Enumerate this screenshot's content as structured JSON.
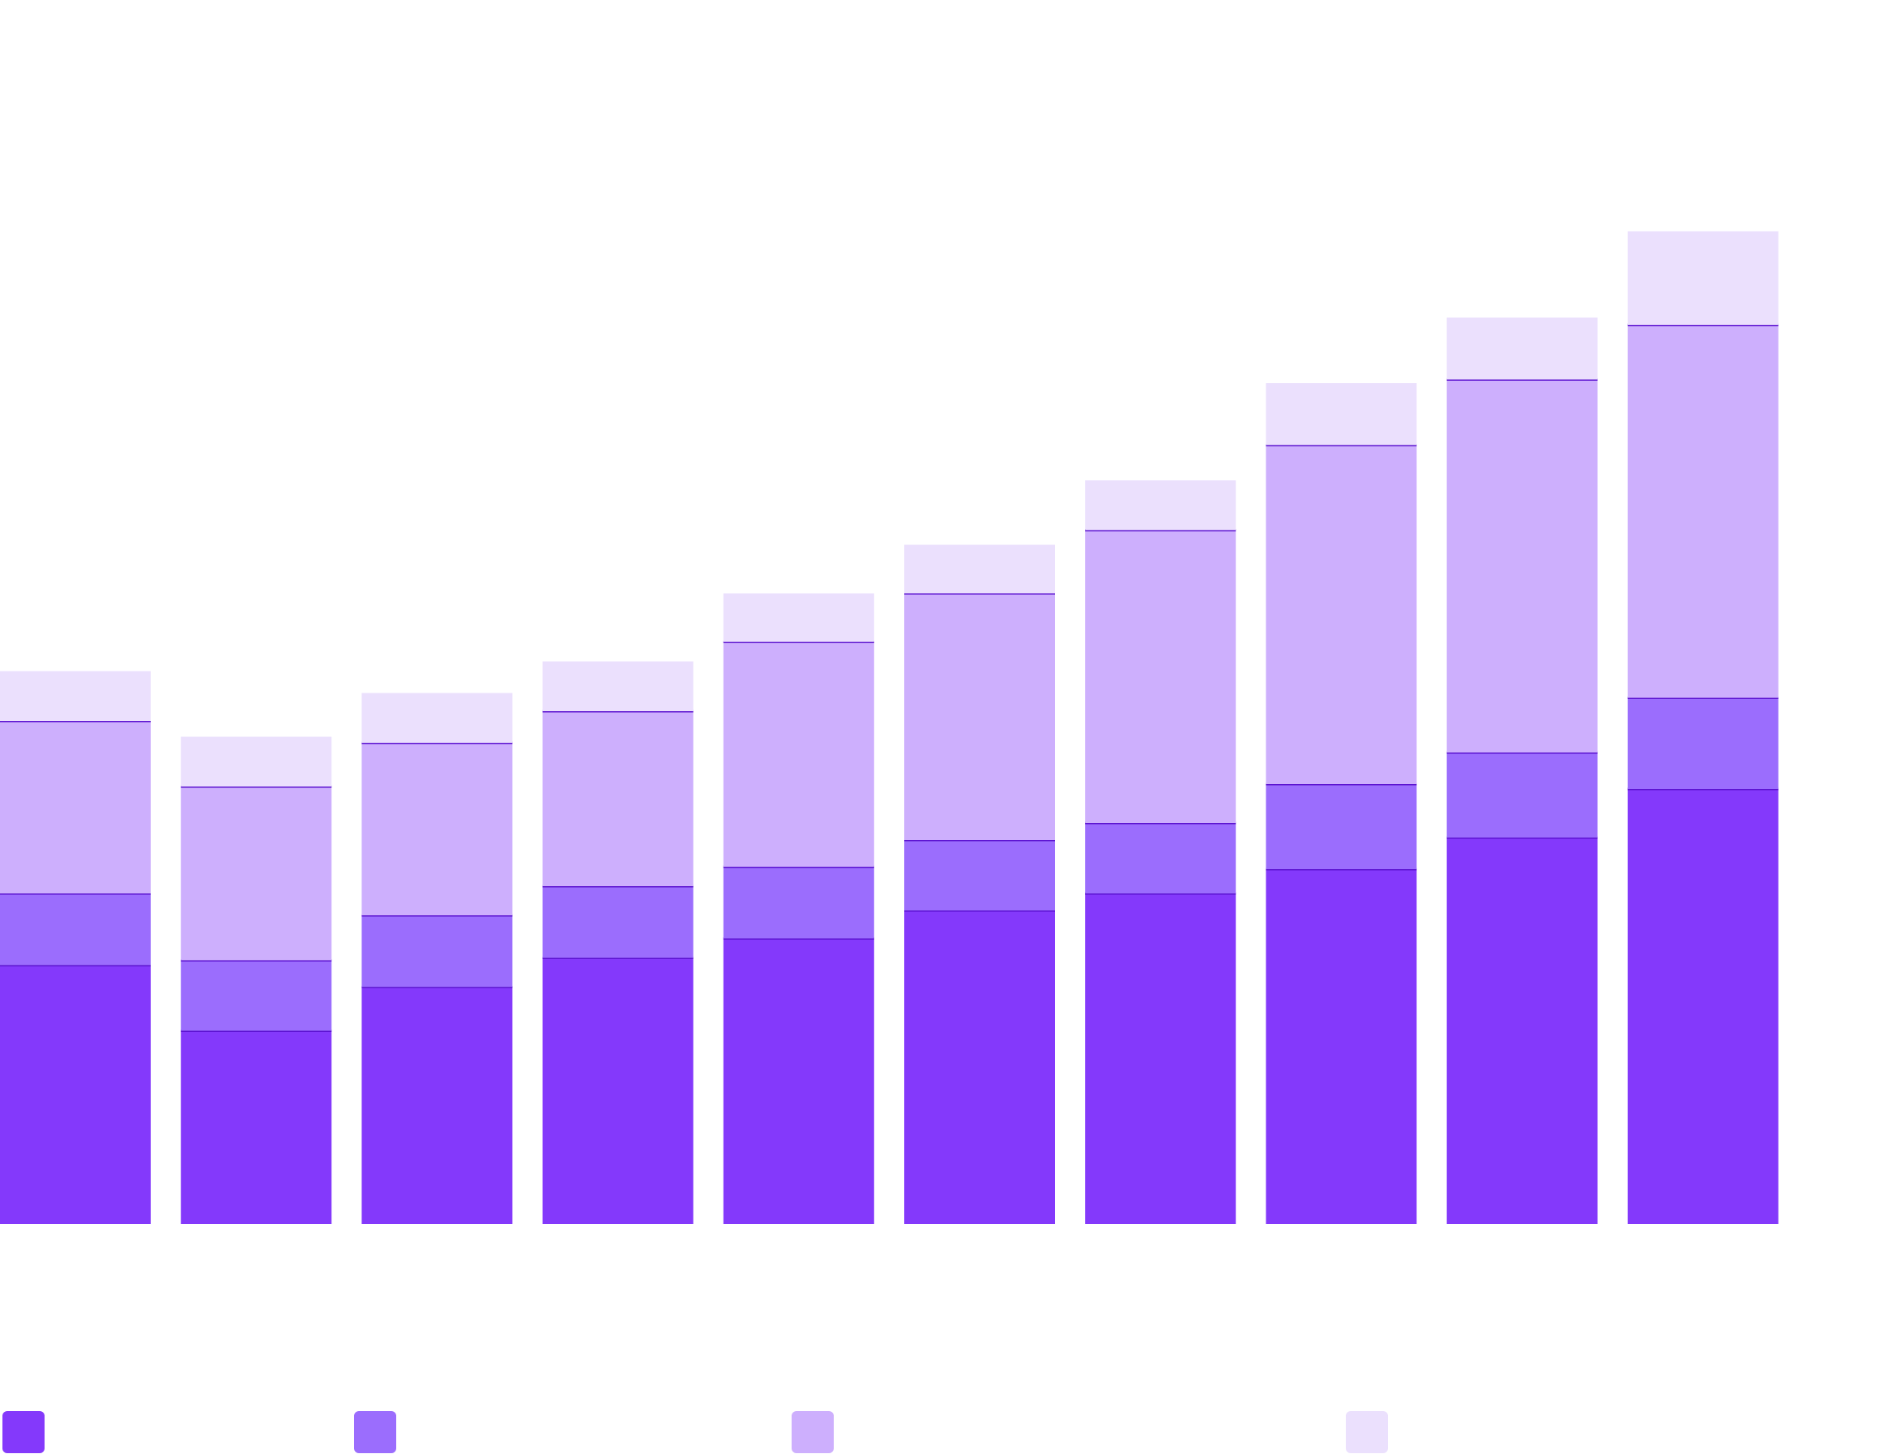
{
  "chart_data": {
    "type": "bar",
    "stacked": true,
    "categories": [
      null,
      null,
      null,
      null,
      null,
      null,
      null,
      null,
      null,
      null
    ],
    "series": [
      {
        "color": "#8439fb",
        "values": [
          213,
          159,
          195,
          219,
          235,
          258,
          272,
          292,
          318,
          358
        ]
      },
      {
        "color": "#9b6dfd",
        "values": [
          59,
          58,
          59,
          59,
          59,
          58,
          58,
          70,
          70,
          75
        ]
      },
      {
        "color": "#cdaffd",
        "values": [
          142,
          143,
          142,
          144,
          185,
          203,
          241,
          279,
          307,
          307
        ]
      },
      {
        "color": "#ebe0fd",
        "values": [
          41,
          41,
          41,
          41,
          40,
          40,
          41,
          51,
          51,
          77
        ]
      }
    ]
  }
}
